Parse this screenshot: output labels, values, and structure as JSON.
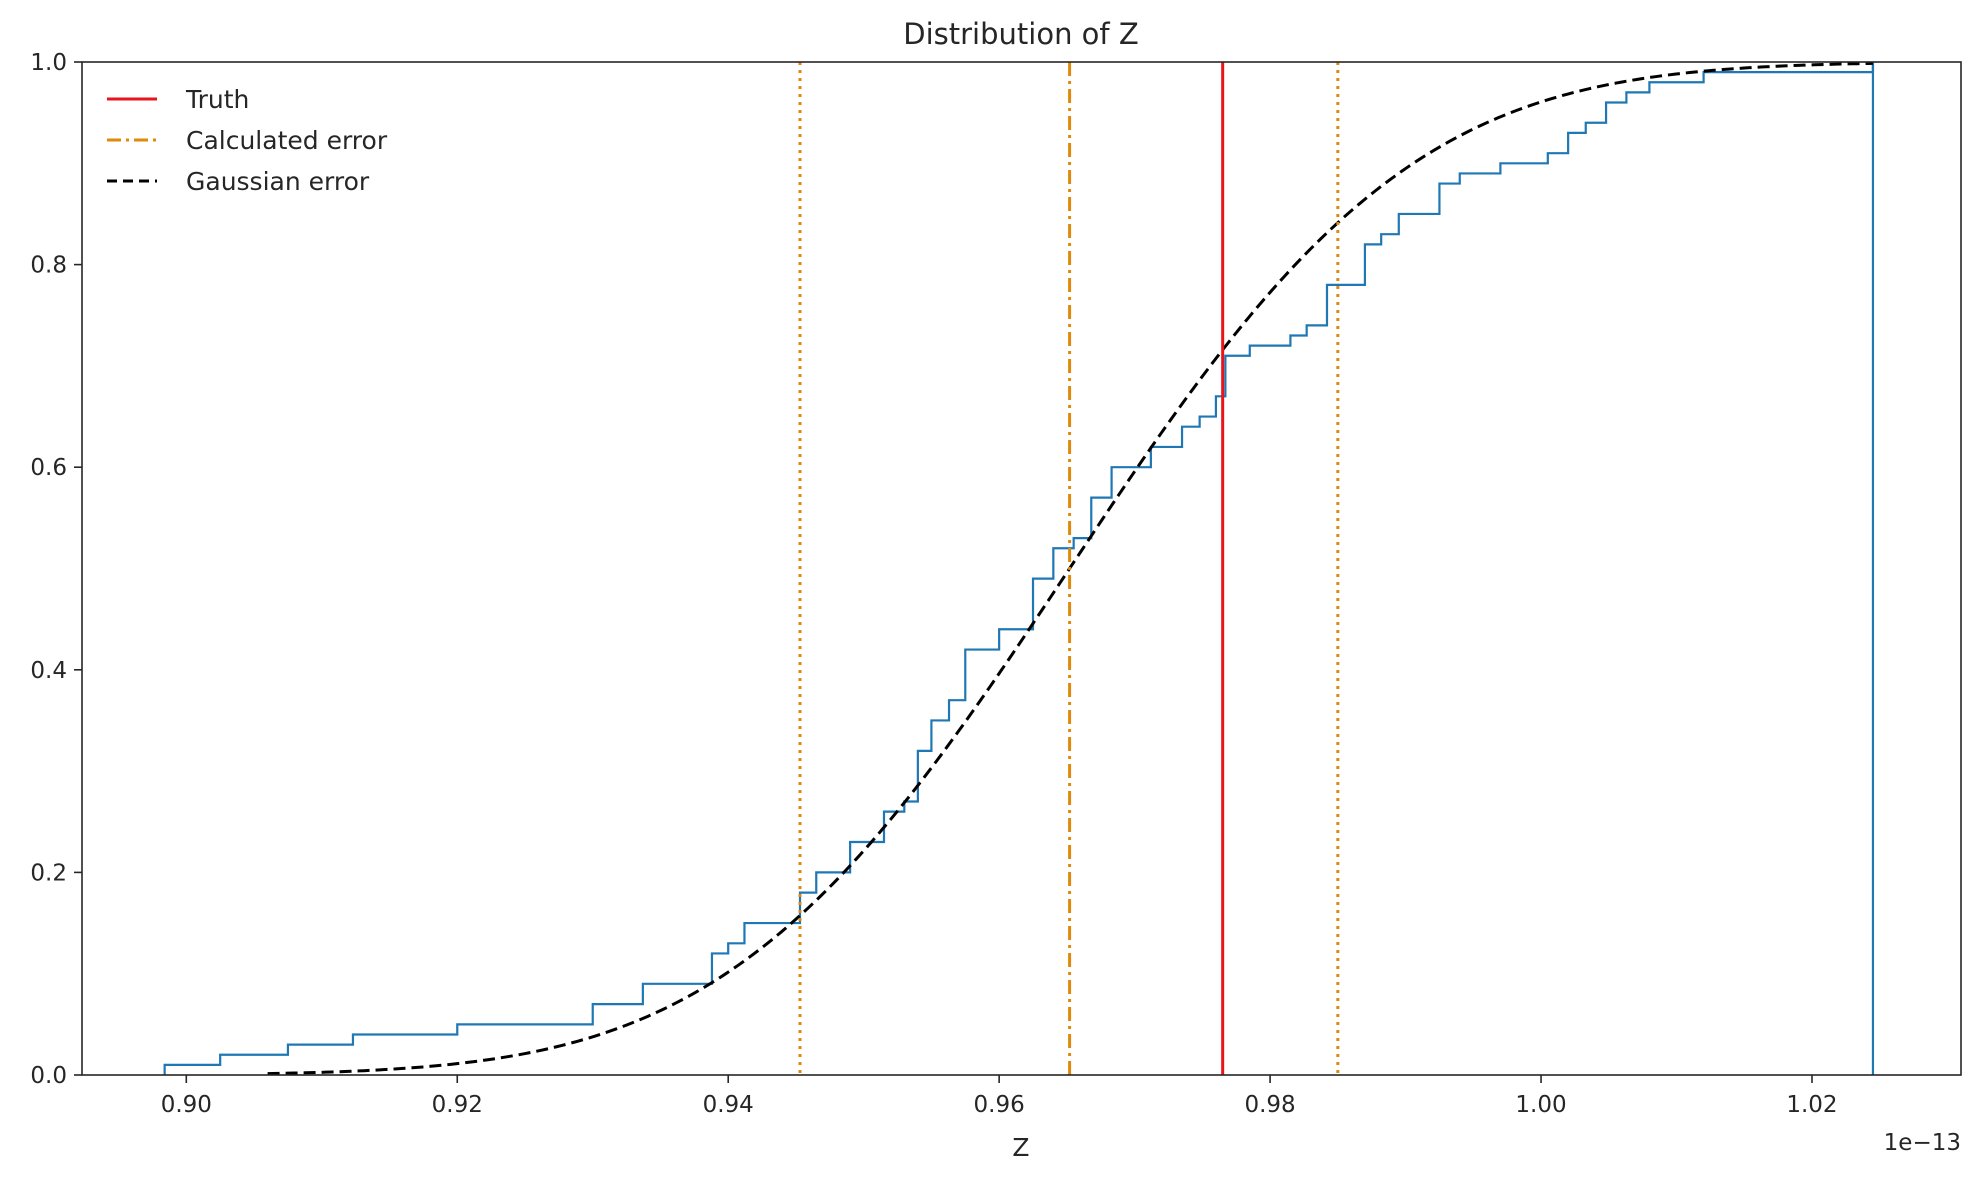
{
  "chart_data": {
    "type": "line",
    "title": "Distribution of Z",
    "xlabel": "Z",
    "ylabel": "",
    "x_offset_label": "1e−13",
    "xlim": [
      0.8923,
      1.031
    ],
    "ylim": [
      0.0,
      1.0
    ],
    "x_ticks": [
      0.9,
      0.92,
      0.94,
      0.96,
      0.98,
      1.0,
      1.02
    ],
    "x_tick_labels": [
      "0.90",
      "0.92",
      "0.94",
      "0.96",
      "0.98",
      "1.00",
      "1.02"
    ],
    "y_ticks": [
      0.0,
      0.2,
      0.4,
      0.6,
      0.8,
      1.0
    ],
    "y_tick_labels": [
      "0.0",
      "0.2",
      "0.4",
      "0.6",
      "0.8",
      "1.0"
    ],
    "grid": false,
    "legend_position": "top-left",
    "legend": [
      {
        "label": "Truth",
        "color": "#e8141c",
        "style": "solid"
      },
      {
        "label": "Calculated error",
        "color": "#de8a0c",
        "style": "dashdot"
      },
      {
        "label": "Gaussian error",
        "color": "#000000",
        "style": "dashed"
      }
    ],
    "vertical_lines": [
      {
        "name": "truth",
        "x": 0.9765,
        "color": "#e8141c",
        "style": "solid"
      },
      {
        "name": "calculated-mean",
        "x": 0.9652,
        "color": "#de8a0c",
        "style": "dashdot"
      },
      {
        "name": "calculated-lower",
        "x": 0.9453,
        "color": "#de8a0c",
        "style": "dotted"
      },
      {
        "name": "calculated-upper",
        "x": 0.985,
        "color": "#de8a0c",
        "style": "dotted"
      }
    ],
    "gaussian_cdf": {
      "mean": 0.9652,
      "sigma": 0.0198,
      "x_range": [
        0.906,
        1.0245
      ],
      "color": "#000000"
    },
    "ecdf": {
      "color": "#1f77b4",
      "x_start": 0.8984,
      "x_end": 1.0245,
      "steps": [
        [
          0.8984,
          0.01
        ],
        [
          0.9025,
          0.02
        ],
        [
          0.9075,
          0.03
        ],
        [
          0.9123,
          0.04
        ],
        [
          0.92,
          0.05
        ],
        [
          0.93,
          0.07
        ],
        [
          0.9337,
          0.09
        ],
        [
          0.9388,
          0.12
        ],
        [
          0.94,
          0.13
        ],
        [
          0.9412,
          0.15
        ],
        [
          0.9453,
          0.18
        ],
        [
          0.9465,
          0.2
        ],
        [
          0.949,
          0.23
        ],
        [
          0.9515,
          0.26
        ],
        [
          0.953,
          0.27
        ],
        [
          0.954,
          0.32
        ],
        [
          0.955,
          0.35
        ],
        [
          0.9563,
          0.37
        ],
        [
          0.9575,
          0.42
        ],
        [
          0.96,
          0.44
        ],
        [
          0.9625,
          0.49
        ],
        [
          0.964,
          0.52
        ],
        [
          0.9655,
          0.53
        ],
        [
          0.9668,
          0.57
        ],
        [
          0.9683,
          0.6
        ],
        [
          0.9712,
          0.62
        ],
        [
          0.9735,
          0.64
        ],
        [
          0.9748,
          0.65
        ],
        [
          0.976,
          0.67
        ],
        [
          0.9767,
          0.71
        ],
        [
          0.9785,
          0.72
        ],
        [
          0.9815,
          0.73
        ],
        [
          0.9827,
          0.74
        ],
        [
          0.9842,
          0.78
        ],
        [
          0.987,
          0.82
        ],
        [
          0.9882,
          0.83
        ],
        [
          0.9895,
          0.85
        ],
        [
          0.9925,
          0.88
        ],
        [
          0.994,
          0.89
        ],
        [
          0.997,
          0.9
        ],
        [
          1.0005,
          0.91
        ],
        [
          1.002,
          0.93
        ],
        [
          1.0033,
          0.94
        ],
        [
          1.0048,
          0.96
        ],
        [
          1.0063,
          0.97
        ],
        [
          1.008,
          0.98
        ],
        [
          1.012,
          0.99
        ],
        [
          1.0245,
          1.0
        ]
      ]
    }
  }
}
